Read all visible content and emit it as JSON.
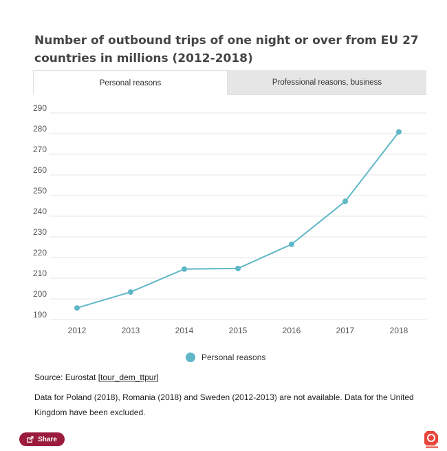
{
  "header": {
    "title": "Number of outbound trips of one night or over from EU 27 countries in millions (2012-2018)"
  },
  "tabs": [
    {
      "label": "Personal reasons",
      "active": true
    },
    {
      "label": "Professional reasons, business",
      "active": false
    }
  ],
  "chart_data": {
    "type": "line",
    "categories": [
      "2012",
      "2013",
      "2014",
      "2015",
      "2016",
      "2017",
      "2018"
    ],
    "series": [
      {
        "name": "Personal reasons",
        "values": [
          195.6,
          203.3,
          214.4,
          214.7,
          226.4,
          247.2,
          280.8
        ]
      }
    ],
    "yticks": [
      190,
      200,
      210,
      220,
      230,
      240,
      250,
      260,
      270,
      280,
      290
    ],
    "ylim": [
      190,
      290
    ],
    "grid": true,
    "legend_position": "bottom",
    "color": "#5fb7c7"
  },
  "legend": {
    "label": "Personal reasons",
    "color": "#5fb7c7"
  },
  "footer": {
    "source_prefix": "Source: Eurostat ",
    "source_link": "[tour_dem_ttpur]",
    "note": "Data for Poland (2018), Romania (2018) and Sweden (2012-2013) are not available. Data for the United Kingdom have been excluded.",
    "share_label": "Share",
    "share_color": "#9b1b3c",
    "logo_text": "Infogram"
  }
}
